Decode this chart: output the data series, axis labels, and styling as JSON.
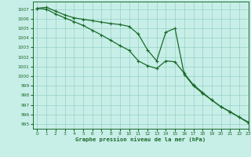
{
  "bg_color": "#c8eee8",
  "grid_color": "#88ccbb",
  "line_color": "#1a6b2a",
  "title": "Graphe pression niveau de la mer (hPa)",
  "xlim": [
    -0.5,
    23
  ],
  "ylim": [
    994.5,
    1007.8
  ],
  "yticks": [
    995,
    996,
    997,
    998,
    999,
    1000,
    1001,
    1002,
    1003,
    1004,
    1005,
    1006,
    1007
  ],
  "xticks": [
    0,
    1,
    2,
    3,
    4,
    5,
    6,
    7,
    8,
    9,
    10,
    11,
    12,
    13,
    14,
    15,
    16,
    17,
    18,
    19,
    20,
    21,
    22,
    23
  ],
  "x": [
    0,
    1,
    2,
    3,
    4,
    5,
    6,
    7,
    8,
    9,
    10,
    11,
    12,
    13,
    14,
    15,
    16,
    17,
    18,
    19,
    20,
    21,
    22,
    23
  ],
  "y_smooth": [
    1007.1,
    1007.2,
    1006.8,
    1006.4,
    1006.1,
    1005.95,
    1005.8,
    1005.65,
    1005.5,
    1005.4,
    1005.2,
    1004.4,
    1002.75,
    1001.6,
    1004.6,
    1005.0,
    1000.2,
    999.0,
    998.2,
    997.5,
    996.8,
    996.3,
    995.7,
    995.2
  ],
  "y_lower": [
    1007.1,
    1007.0,
    1006.5,
    1006.1,
    1005.7,
    1005.3,
    1004.8,
    1004.3,
    1003.75,
    1003.2,
    1002.7,
    1001.6,
    1001.1,
    1000.8,
    1001.6,
    1001.5,
    1000.3,
    999.1,
    998.3,
    997.5,
    996.8,
    996.25,
    995.7,
    995.1
  ]
}
